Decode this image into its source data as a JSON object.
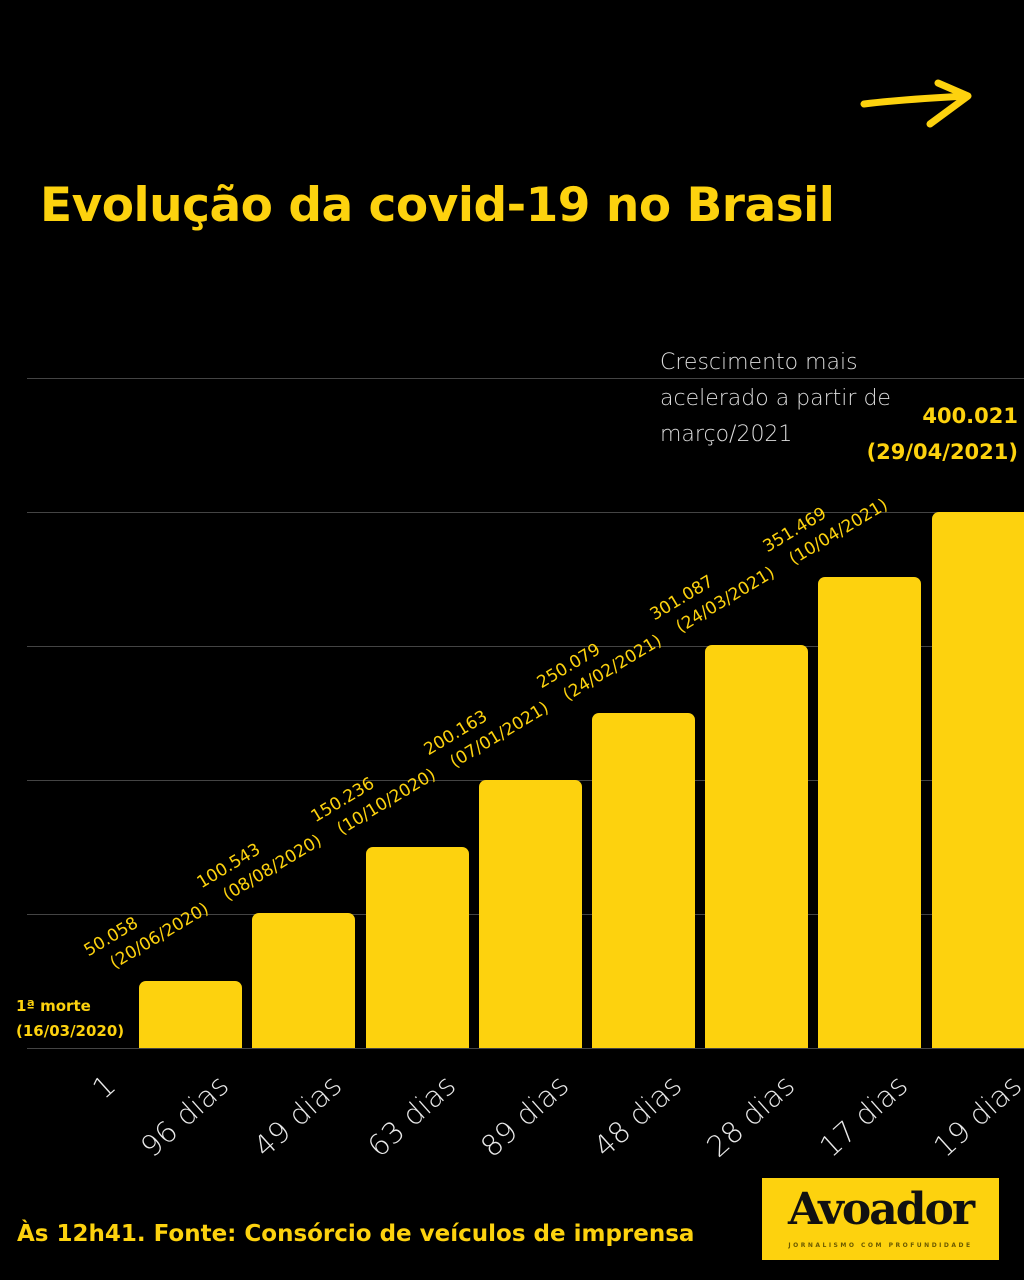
{
  "title": "Evolução da covid-19 no Brasil",
  "annotation": [
    "Crescimento mais",
    "acelerado a partir de",
    "março/2021"
  ],
  "footer": "Às 12h41. Fonte: Consórcio de veículos de imprensa",
  "logo": {
    "name": "Avoador",
    "tagline": "JORNALISMO COM PROFUNDIDADE"
  },
  "colors": {
    "bar": "#FDD20E",
    "background": "#000000",
    "grid": "#444444"
  },
  "icons": {
    "top_right": "arrow-right-icon"
  },
  "chart_data": {
    "type": "bar",
    "title": "Evolução da covid-19 no Brasil",
    "categories": [
      "1",
      "96 dias",
      "49 dias",
      "63 dias",
      "89 dias",
      "48 dias",
      "28 dias",
      "17 dias",
      "19 dias"
    ],
    "values": [
      1,
      50058,
      100543,
      150236,
      200163,
      250079,
      301087,
      351469,
      400021
    ],
    "value_labels": [
      "1ª morte",
      "50.058",
      "100.543",
      "150.236",
      "200.163",
      "250.079",
      "301.087",
      "351.469",
      "400.021"
    ],
    "date_labels": [
      "(16/03/2020)",
      "(20/06/2020)",
      "(08/08/2020)",
      "(10/10/2020)",
      "(07/01/2021)",
      "(24/02/2021)",
      "(24/03/2021)",
      "(10/04/2021)",
      "(29/04/2021)"
    ],
    "ylim": [
      0,
      500000
    ],
    "grid": true,
    "xlabel": "",
    "ylabel": ""
  }
}
